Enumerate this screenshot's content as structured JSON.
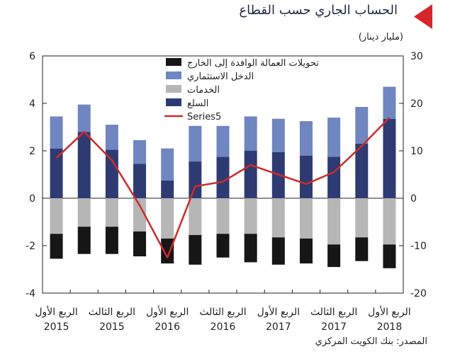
{
  "title": "الحساب الجاري حسب القطاع",
  "unit": "(مليار دينار)",
  "source": "المصدر: بنك الكويت المركزي",
  "colors": {
    "title_marker": "#d7262a",
    "title_text": "#1f2a44",
    "goods": "#2e3b72",
    "investment_income": "#6f86c1",
    "services": "#b6b6b6",
    "remittances": "#161616",
    "series5": "#cf2a2a"
  },
  "chart_data": {
    "type": "bar",
    "stacked": true,
    "categories": [
      "Q1 2015",
      "Q2 2015",
      "Q3 2015",
      "Q4 2015",
      "Q1 2016",
      "Q2 2016",
      "Q3 2016",
      "Q4 2016",
      "Q1 2017",
      "Q2 2017",
      "Q3 2017",
      "Q4 2017",
      "Q1 2018"
    ],
    "x_tick_labels": [
      {
        "index": 0,
        "line1": "الربع الأول",
        "line2": "2015"
      },
      {
        "index": 2,
        "line1": "الربع الثالث",
        "line2": "2015"
      },
      {
        "index": 4,
        "line1": "الربع الأول",
        "line2": "2016"
      },
      {
        "index": 6,
        "line1": "الربع الثالث",
        "line2": "2016"
      },
      {
        "index": 8,
        "line1": "الربع الأول",
        "line2": "2017"
      },
      {
        "index": 10,
        "line1": "الربع الثالث",
        "line2": "2017"
      },
      {
        "index": 12,
        "line1": "الربع الأول",
        "line2": "2018"
      }
    ],
    "left_axis": {
      "min": -4,
      "max": 6,
      "ticks": [
        -4,
        -2,
        0,
        2,
        4,
        6
      ]
    },
    "right_axis": {
      "min": -20,
      "max": 30,
      "ticks": [
        -20,
        -10,
        0,
        10,
        20,
        30
      ]
    },
    "grid": false,
    "legend_position": "top-left",
    "series": [
      {
        "name": "تحويلات العمالة الوافدة إلى الخارج",
        "kind": "bar",
        "axis": "left",
        "color": "#161616",
        "values": [
          -1.05,
          -1.15,
          -1.15,
          -1.05,
          -1.05,
          -1.25,
          -1.0,
          -1.2,
          -1.15,
          -1.05,
          -0.95,
          -1.0,
          -1.0
        ]
      },
      {
        "name": "الدخل الاستثماري",
        "kind": "bar",
        "axis": "left",
        "color": "#6f86c1",
        "values": [
          1.35,
          1.15,
          1.05,
          1.0,
          1.35,
          1.5,
          1.3,
          1.45,
          1.4,
          1.45,
          1.65,
          1.55,
          1.35
        ]
      },
      {
        "name": "الخدمات",
        "kind": "bar",
        "axis": "left",
        "color": "#b6b6b6",
        "values": [
          -1.5,
          -1.2,
          -1.2,
          -1.4,
          -1.7,
          -1.55,
          -1.5,
          -1.5,
          -1.65,
          -1.7,
          -1.95,
          -1.65,
          -1.95
        ]
      },
      {
        "name": "السلع",
        "kind": "bar",
        "axis": "left",
        "color": "#2e3b72",
        "values": [
          2.1,
          2.8,
          2.05,
          1.45,
          0.75,
          1.55,
          1.75,
          2.0,
          1.95,
          1.8,
          1.75,
          2.3,
          3.35
        ]
      },
      {
        "name": "Series5",
        "kind": "line",
        "axis": "right",
        "color": "#cf2a2a",
        "values": [
          8.5,
          14,
          8,
          -1.5,
          -12.5,
          2.5,
          3.5,
          7,
          5,
          3,
          5.5,
          11,
          17
        ]
      }
    ]
  }
}
